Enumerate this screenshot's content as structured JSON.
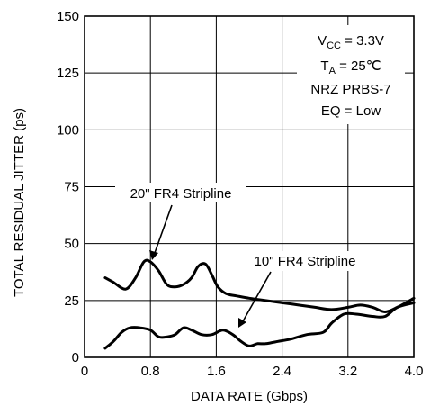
{
  "chart_data": {
    "type": "line",
    "title": "",
    "xlabel": "DATA RATE (Gbps)",
    "ylabel": "TOTAL RESIDUAL JITTER (ps)",
    "xlim": [
      0,
      4.0
    ],
    "ylim": [
      0,
      150
    ],
    "grid": true,
    "x_ticks": [
      "0",
      "0.8",
      "1.6",
      "2.4",
      "3.2",
      "4.0"
    ],
    "y_ticks": [
      "0",
      "25",
      "50",
      "75",
      "100",
      "125",
      "150"
    ],
    "conditions": {
      "vcc_main": "V",
      "vcc_sub": "CC",
      "vcc_value": " = 3.3V",
      "ta_main": "T",
      "ta_sub": "A",
      "ta_value": " = 25℃",
      "pattern": "NRZ PRBS-7",
      "eq": "EQ = Low"
    },
    "series": [
      {
        "name": "20\" FR4 Stripline",
        "x": [
          0.25,
          0.35,
          0.5,
          0.62,
          0.72,
          0.8,
          0.9,
          1.0,
          1.1,
          1.2,
          1.3,
          1.38,
          1.47,
          1.55,
          1.62,
          1.72,
          1.85,
          2.0,
          2.2,
          2.4,
          2.6,
          2.8,
          3.0,
          3.2,
          3.35,
          3.5,
          3.65,
          3.8,
          4.0
        ],
        "y": [
          35,
          33,
          30,
          35,
          42,
          42,
          38,
          32,
          31,
          32,
          35,
          40,
          41,
          36,
          31,
          28,
          27,
          26,
          25,
          24,
          23,
          22,
          21,
          22,
          23,
          22,
          20,
          22,
          26
        ]
      },
      {
        "name": "10\" FR4 Stripline",
        "x": [
          0.25,
          0.35,
          0.45,
          0.55,
          0.68,
          0.8,
          0.9,
          1.0,
          1.1,
          1.2,
          1.3,
          1.42,
          1.55,
          1.68,
          1.8,
          1.9,
          2.0,
          2.1,
          2.2,
          2.35,
          2.5,
          2.7,
          2.9,
          3.0,
          3.15,
          3.3,
          3.5,
          3.65,
          3.8,
          4.0
        ],
        "y": [
          4,
          7,
          11,
          13,
          13,
          12,
          9,
          9,
          10,
          13,
          12,
          10,
          10,
          12,
          10,
          7,
          5,
          6,
          6,
          7,
          8,
          10,
          11,
          15,
          19,
          19,
          18,
          18,
          22,
          24
        ]
      }
    ],
    "labels": {
      "series_20in": "20\" FR4 Stripline",
      "series_10in": "10\" FR4 Stripline"
    }
  }
}
